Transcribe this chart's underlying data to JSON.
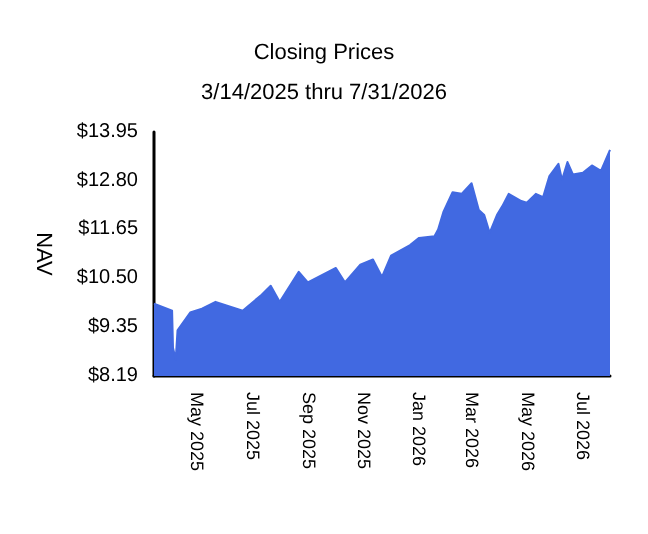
{
  "chart_data": {
    "type": "area",
    "title": "Closing Prices",
    "subtitle": "3/14/2025 thru 7/31/2026",
    "ylabel": "NAV",
    "x": [
      "2025-03-14",
      "2025-04-03",
      "2025-04-04",
      "2025-04-07",
      "2025-04-09",
      "2025-04-23",
      "2025-05-06",
      "2025-05-21",
      "2025-06-20",
      "2025-07-11",
      "2025-07-21",
      "2025-07-31",
      "2025-08-21",
      "2025-08-31",
      "2025-10-01",
      "2025-10-11",
      "2025-10-28",
      "2025-11-11",
      "2025-11-21",
      "2025-12-01",
      "2025-12-22",
      "2026-01-01",
      "2026-01-18",
      "2026-01-22",
      "2026-01-28",
      "2026-02-07",
      "2026-02-17",
      "2026-02-28",
      "2026-03-08",
      "2026-03-14",
      "2026-03-20",
      "2026-03-28",
      "2026-04-03",
      "2026-04-10",
      "2026-04-24",
      "2026-04-30",
      "2026-05-10",
      "2026-05-18",
      "2026-05-25",
      "2026-06-04",
      "2026-06-08",
      "2026-06-14",
      "2026-06-20",
      "2026-07-01",
      "2026-07-11",
      "2026-07-21",
      "2026-07-31"
    ],
    "series": [
      {
        "color": "#4169e1",
        "values": [
          9.9,
          9.73,
          8.86,
          8.58,
          9.27,
          9.69,
          9.78,
          9.94,
          9.73,
          10.11,
          10.32,
          9.94,
          10.65,
          10.4,
          10.74,
          10.4,
          10.82,
          10.94,
          10.53,
          11.03,
          11.28,
          11.45,
          11.49,
          11.65,
          12.07,
          12.53,
          12.49,
          12.74,
          12.11,
          11.99,
          11.57,
          11.99,
          12.2,
          12.49,
          12.32,
          12.28,
          12.49,
          12.41,
          12.91,
          13.2,
          12.82,
          13.24,
          12.95,
          12.99,
          13.16,
          13.03,
          13.53
        ]
      }
    ],
    "xlim": [
      "2025-03-14",
      "2026-07-31"
    ],
    "xticks": [
      {
        "value": "2025-05-01",
        "label": "May 2025"
      },
      {
        "value": "2025-07-01",
        "label": "Jul 2025"
      },
      {
        "value": "2025-09-01",
        "label": "Sep 2025"
      },
      {
        "value": "2025-11-01",
        "label": "Nov 2025"
      },
      {
        "value": "2026-01-01",
        "label": "Jan 2026"
      },
      {
        "value": "2026-03-01",
        "label": "Mar 2026"
      },
      {
        "value": "2026-05-01",
        "label": "May 2026"
      },
      {
        "value": "2026-07-01",
        "label": "Jul 2026"
      }
    ],
    "ylim": [
      8.19,
      13.95
    ],
    "yticks": [
      {
        "value": 8.19,
        "label": "$8.19"
      },
      {
        "value": 9.35,
        "label": "$9.35"
      },
      {
        "value": 10.5,
        "label": "$10.50"
      },
      {
        "value": 11.65,
        "label": "$11.65"
      },
      {
        "value": 12.8,
        "label": "$12.80"
      },
      {
        "value": 13.95,
        "label": "$13.95"
      }
    ],
    "tick_labels": "xy"
  }
}
